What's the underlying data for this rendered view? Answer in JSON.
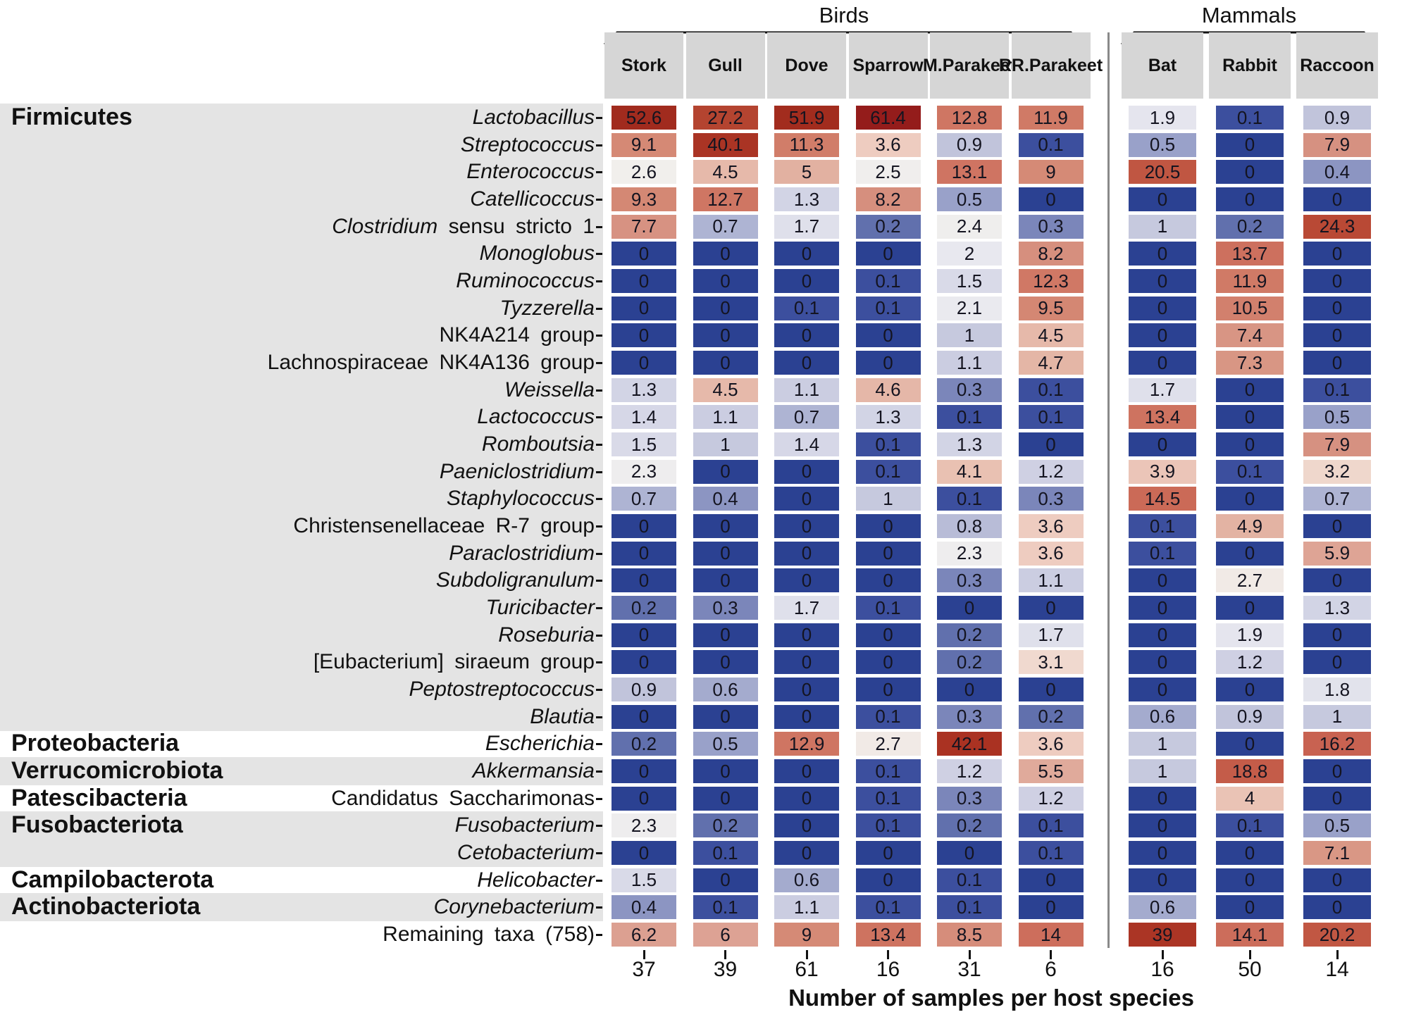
{
  "chart_data": {
    "type": "heatmap",
    "title": "",
    "xlabel": "Number of samples per host species",
    "ylabel": "",
    "legend": "none",
    "col_groups": [
      {
        "label": "Birds",
        "col_start": 0,
        "col_end": 5
      },
      {
        "label": "Mammals",
        "col_start": 6,
        "col_end": 8
      }
    ],
    "columns": [
      {
        "label_lines": [
          "Stork"
        ]
      },
      {
        "label_lines": [
          "Gull"
        ]
      },
      {
        "label_lines": [
          "Dove"
        ]
      },
      {
        "label_lines": [
          "Sparrow"
        ]
      },
      {
        "label_lines": [
          "M.",
          "Parakeet"
        ]
      },
      {
        "label_lines": [
          "RR.",
          "Parakeet"
        ]
      },
      {
        "label_lines": [
          "Bat"
        ]
      },
      {
        "label_lines": [
          "Rabbit"
        ]
      },
      {
        "label_lines": [
          "Raccoon"
        ]
      }
    ],
    "samples_per_species": [
      "37",
      "39",
      "61",
      "16",
      "31",
      "6",
      "16",
      "50",
      "14"
    ],
    "phyla": [
      {
        "name": "Firmicutes",
        "start": 0,
        "end": 22,
        "shaded": true
      },
      {
        "name": "Proteobacteria",
        "start": 23,
        "end": 23,
        "shaded": false
      },
      {
        "name": "Verrucomicrobiota",
        "start": 24,
        "end": 24,
        "shaded": true
      },
      {
        "name": "Patescibacteria",
        "start": 25,
        "end": 25,
        "shaded": false
      },
      {
        "name": "Fusobacteriota",
        "start": 26,
        "end": 27,
        "shaded": true
      },
      {
        "name": "Campilobacterota",
        "start": 28,
        "end": 28,
        "shaded": false
      },
      {
        "name": "Actinobacteriota",
        "start": 29,
        "end": 29,
        "shaded": true
      },
      {
        "name": "",
        "start": 30,
        "end": 30,
        "shaded": false
      }
    ],
    "rows": [
      {
        "segs": [
          [
            "Lactobacillus",
            true
          ]
        ],
        "values": [
          "52.6",
          "27.2",
          "51.9",
          "61.4",
          "12.8",
          "11.9",
          "1.9",
          "0.1",
          "0.9"
        ]
      },
      {
        "segs": [
          [
            "Streptococcus",
            true
          ]
        ],
        "values": [
          "9.1",
          "40.1",
          "11.3",
          "3.6",
          "0.9",
          "0.1",
          "0.5",
          "0",
          "7.9"
        ]
      },
      {
        "segs": [
          [
            "Enterococcus",
            true
          ]
        ],
        "values": [
          "2.6",
          "4.5",
          "5",
          "2.5",
          "13.1",
          "9",
          "20.5",
          "0",
          "0.4"
        ]
      },
      {
        "segs": [
          [
            "Catellicoccus",
            true
          ]
        ],
        "values": [
          "9.3",
          "12.7",
          "1.3",
          "8.2",
          "0.5",
          "0",
          "0",
          "0",
          "0"
        ]
      },
      {
        "segs": [
          [
            "Clostridium",
            true
          ],
          [
            " sensu stricto 1",
            false
          ]
        ],
        "values": [
          "7.7",
          "0.7",
          "1.7",
          "0.2",
          "2.4",
          "0.3",
          "1",
          "0.2",
          "24.3"
        ]
      },
      {
        "segs": [
          [
            "Monoglobus",
            true
          ]
        ],
        "values": [
          "0",
          "0",
          "0",
          "0",
          "2",
          "8.2",
          "0",
          "13.7",
          "0"
        ]
      },
      {
        "segs": [
          [
            "Ruminococcus",
            true
          ]
        ],
        "values": [
          "0",
          "0",
          "0",
          "0.1",
          "1.5",
          "12.3",
          "0",
          "11.9",
          "0"
        ]
      },
      {
        "segs": [
          [
            "Tyzzerella",
            true
          ]
        ],
        "values": [
          "0",
          "0",
          "0.1",
          "0.1",
          "2.1",
          "9.5",
          "0",
          "10.5",
          "0"
        ]
      },
      {
        "segs": [
          [
            "NK4A214 group",
            false
          ]
        ],
        "values": [
          "0",
          "0",
          "0",
          "0",
          "1",
          "4.5",
          "0",
          "7.4",
          "0"
        ]
      },
      {
        "segs": [
          [
            "Lachnospiraceae NK4A136 group",
            false
          ]
        ],
        "values": [
          "0",
          "0",
          "0",
          "0",
          "1.1",
          "4.7",
          "0",
          "7.3",
          "0"
        ]
      },
      {
        "segs": [
          [
            "Weissella",
            true
          ]
        ],
        "values": [
          "1.3",
          "4.5",
          "1.1",
          "4.6",
          "0.3",
          "0.1",
          "1.7",
          "0",
          "0.1"
        ]
      },
      {
        "segs": [
          [
            "Lactococcus",
            true
          ]
        ],
        "values": [
          "1.4",
          "1.1",
          "0.7",
          "1.3",
          "0.1",
          "0.1",
          "13.4",
          "0",
          "0.5"
        ]
      },
      {
        "segs": [
          [
            "Romboutsia",
            true
          ]
        ],
        "values": [
          "1.5",
          "1",
          "1.4",
          "0.1",
          "1.3",
          "0",
          "0",
          "0",
          "7.9"
        ]
      },
      {
        "segs": [
          [
            "Paeniclostridium",
            true
          ]
        ],
        "values": [
          "2.3",
          "0",
          "0",
          "0.1",
          "4.1",
          "1.2",
          "3.9",
          "0.1",
          "3.2"
        ]
      },
      {
        "segs": [
          [
            "Staphylococcus",
            true
          ]
        ],
        "values": [
          "0.7",
          "0.4",
          "0",
          "1",
          "0.1",
          "0.3",
          "14.5",
          "0",
          "0.7"
        ]
      },
      {
        "segs": [
          [
            "Christensenellaceae R-7 group",
            false
          ]
        ],
        "values": [
          "0",
          "0",
          "0",
          "0",
          "0.8",
          "3.6",
          "0.1",
          "4.9",
          "0"
        ]
      },
      {
        "segs": [
          [
            "Paraclostridium",
            true
          ]
        ],
        "values": [
          "0",
          "0",
          "0",
          "0",
          "2.3",
          "3.6",
          "0.1",
          "0",
          "5.9"
        ]
      },
      {
        "segs": [
          [
            "Subdoligranulum",
            true
          ]
        ],
        "values": [
          "0",
          "0",
          "0",
          "0",
          "0.3",
          "1.1",
          "0",
          "2.7",
          "0"
        ]
      },
      {
        "segs": [
          [
            "Turicibacter",
            true
          ]
        ],
        "values": [
          "0.2",
          "0.3",
          "1.7",
          "0.1",
          "0",
          "0",
          "0",
          "0",
          "1.3"
        ]
      },
      {
        "segs": [
          [
            "Roseburia",
            true
          ]
        ],
        "values": [
          "0",
          "0",
          "0",
          "0",
          "0.2",
          "1.7",
          "0",
          "1.9",
          "0"
        ]
      },
      {
        "segs": [
          [
            "[Eubacterium] siraeum group",
            false
          ]
        ],
        "values": [
          "0",
          "0",
          "0",
          "0",
          "0.2",
          "3.1",
          "0",
          "1.2",
          "0"
        ]
      },
      {
        "segs": [
          [
            "Peptostreptococcus",
            true
          ]
        ],
        "values": [
          "0.9",
          "0.6",
          "0",
          "0",
          "0",
          "0",
          "0",
          "0",
          "1.8"
        ]
      },
      {
        "segs": [
          [
            "Blautia",
            true
          ]
        ],
        "values": [
          "0",
          "0",
          "0",
          "0.1",
          "0.3",
          "0.2",
          "0.6",
          "0.9",
          "1"
        ]
      },
      {
        "segs": [
          [
            "Escherichia",
            true
          ]
        ],
        "values": [
          "0.2",
          "0.5",
          "12.9",
          "2.7",
          "42.1",
          "3.6",
          "1",
          "0",
          "16.2"
        ]
      },
      {
        "segs": [
          [
            "Akkermansia",
            true
          ]
        ],
        "values": [
          "0",
          "0",
          "0",
          "0.1",
          "1.2",
          "5.5",
          "1",
          "18.8",
          "0"
        ]
      },
      {
        "segs": [
          [
            "Candidatus Saccharimonas",
            false
          ]
        ],
        "values": [
          "0",
          "0",
          "0",
          "0.1",
          "0.3",
          "1.2",
          "0",
          "4",
          "0"
        ]
      },
      {
        "segs": [
          [
            "Fusobacterium",
            true
          ]
        ],
        "values": [
          "2.3",
          "0.2",
          "0",
          "0.1",
          "0.2",
          "0.1",
          "0",
          "0.1",
          "0.5"
        ]
      },
      {
        "segs": [
          [
            "Cetobacterium",
            true
          ]
        ],
        "values": [
          "0",
          "0.1",
          "0",
          "0",
          "0",
          "0.1",
          "0",
          "0",
          "7.1"
        ]
      },
      {
        "segs": [
          [
            "Helicobacter",
            true
          ]
        ],
        "values": [
          "1.5",
          "0",
          "0.6",
          "0",
          "0.1",
          "0",
          "0",
          "0",
          "0"
        ]
      },
      {
        "segs": [
          [
            "Corynebacterium",
            true
          ]
        ],
        "values": [
          "0.4",
          "0.1",
          "1.1",
          "0.1",
          "0.1",
          "0",
          "0.6",
          "0",
          "0"
        ]
      },
      {
        "segs": [
          [
            "Remaining taxa (758)",
            false
          ]
        ],
        "values": [
          "6.2",
          "6",
          "9",
          "13.4",
          "8.5",
          "14",
          "39",
          "14.1",
          "20.2"
        ]
      }
    ],
    "colormap": {
      "anchors": [
        {
          "v": 0.0,
          "c": "#2b4192"
        },
        {
          "v": 0.1,
          "c": "#3c4f9e"
        },
        {
          "v": 0.2,
          "c": "#6170ad"
        },
        {
          "v": 0.3,
          "c": "#7b86ba"
        },
        {
          "v": 0.4,
          "c": "#8c95c2"
        },
        {
          "v": 0.5,
          "c": "#99a1c9"
        },
        {
          "v": 0.7,
          "c": "#aeb4d3"
        },
        {
          "v": 0.9,
          "c": "#c1c4db"
        },
        {
          "v": 1.1,
          "c": "#cbcde1"
        },
        {
          "v": 1.4,
          "c": "#d6d7e7"
        },
        {
          "v": 1.7,
          "c": "#dfe0eb"
        },
        {
          "v": 2.0,
          "c": "#e8e8ef"
        },
        {
          "v": 2.3,
          "c": "#eeedee"
        },
        {
          "v": 2.6,
          "c": "#f1efec"
        },
        {
          "v": 3.0,
          "c": "#f0dcd2"
        },
        {
          "v": 3.6,
          "c": "#eeccc0"
        },
        {
          "v": 4.3,
          "c": "#e7bcad"
        },
        {
          "v": 5.0,
          "c": "#e2b1a1"
        },
        {
          "v": 6.0,
          "c": "#dda294"
        },
        {
          "v": 7.0,
          "c": "#d99886"
        },
        {
          "v": 8.0,
          "c": "#d69080"
        },
        {
          "v": 9.0,
          "c": "#d58a76"
        },
        {
          "v": 10.5,
          "c": "#d2806d"
        },
        {
          "v": 12.0,
          "c": "#d07a66"
        },
        {
          "v": 13.5,
          "c": "#ce7260"
        },
        {
          "v": 14.5,
          "c": "#cb6a57"
        },
        {
          "v": 16.5,
          "c": "#c86150"
        },
        {
          "v": 19.0,
          "c": "#c45c48"
        },
        {
          "v": 21.0,
          "c": "#bf5440"
        },
        {
          "v": 24.5,
          "c": "#b94834"
        },
        {
          "v": 27.5,
          "c": "#b34330"
        },
        {
          "v": 33.0,
          "c": "#ae3a28"
        },
        {
          "v": 40.0,
          "c": "#aa3424"
        },
        {
          "v": 45.0,
          "c": "#a93020"
        },
        {
          "v": 53.0,
          "c": "#a12b1e"
        },
        {
          "v": 61.4,
          "c": "#941c1b"
        }
      ]
    },
    "colors": {
      "cell_text": "#141420",
      "header_bg": "#d6d6d6",
      "band_gray": "#e4e4e4",
      "divider": "#8a8a8a",
      "bracket": "#111111"
    }
  }
}
